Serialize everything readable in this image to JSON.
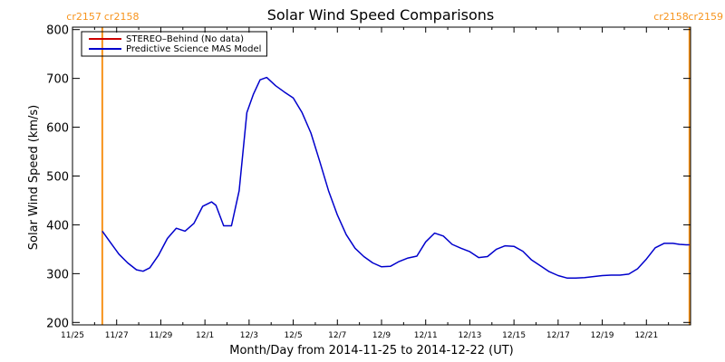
{
  "chart_data": {
    "type": "line",
    "title": "Solar Wind Speed Comparisons",
    "xlabel": "Month/Day from 2014-11-25 to 2014-12-22 (UT)",
    "ylabel": "Solar Wind Speed (km/s)",
    "xlim": [
      0,
      28
    ],
    "ylim": [
      195,
      805
    ],
    "grid": false,
    "legend_position": "top-left",
    "x_tick_values": [
      0,
      2,
      4,
      6,
      8,
      10,
      12,
      14,
      16,
      18,
      20,
      22,
      24,
      26
    ],
    "x_tick_labels": [
      "11/25",
      "11/27",
      "11/29",
      "12/1",
      "12/3",
      "12/5",
      "12/7",
      "12/9",
      "12/11",
      "12/13",
      "12/15",
      "12/17",
      "12/19",
      "12/21"
    ],
    "y_ticks": [
      200,
      300,
      400,
      500,
      600,
      700,
      800
    ],
    "y_tick_labels": [
      "200",
      "300",
      "400",
      "500",
      "600",
      "700",
      "800"
    ],
    "carrington_markers": [
      {
        "x": 1.35,
        "left_label": "cr2157",
        "right_label": "cr2158",
        "color": "#f7941d"
      },
      {
        "x": 27.95,
        "left_label": "cr2158",
        "right_label": "cr2159",
        "color": "#f7941d"
      }
    ],
    "series": [
      {
        "name": "STEREO–Behind (No data)",
        "color": "#cc0000",
        "x": [],
        "y": []
      },
      {
        "name": "Predictive Science MAS Model",
        "color": "#0000cc",
        "x": [
          1.35,
          1.7,
          2.1,
          2.5,
          2.9,
          3.2,
          3.5,
          3.9,
          4.3,
          4.7,
          5.1,
          5.5,
          5.9,
          6.3,
          6.5,
          6.85,
          7.2,
          7.55,
          7.9,
          8.2,
          8.5,
          8.8,
          9.2,
          9.6,
          10.0,
          10.4,
          10.8,
          11.2,
          11.6,
          12.0,
          12.4,
          12.8,
          13.2,
          13.6,
          14.0,
          14.4,
          14.8,
          15.2,
          15.6,
          16.0,
          16.4,
          16.8,
          17.2,
          17.6,
          18.0,
          18.4,
          18.8,
          19.2,
          19.6,
          20.0,
          20.4,
          20.8,
          21.2,
          21.6,
          22.0,
          22.4,
          22.8,
          23.2,
          23.6,
          24.0,
          24.4,
          24.8,
          25.2,
          25.6,
          26.0,
          26.4,
          26.8,
          27.2,
          27.5,
          27.8,
          27.95
        ],
        "y": [
          387,
          365,
          340,
          322,
          308,
          305,
          312,
          338,
          372,
          393,
          387,
          403,
          438,
          447,
          440,
          398,
          398,
          470,
          630,
          668,
          697,
          702,
          685,
          672,
          660,
          630,
          588,
          530,
          470,
          420,
          380,
          352,
          335,
          322,
          314,
          315,
          325,
          332,
          336,
          365,
          383,
          377,
          360,
          352,
          345,
          333,
          335,
          350,
          357,
          356,
          346,
          328,
          316,
          304,
          296,
          291,
          291,
          292,
          294,
          296,
          297,
          297,
          299,
          310,
          330,
          353,
          362,
          362,
          360,
          359,
          359
        ]
      }
    ]
  }
}
